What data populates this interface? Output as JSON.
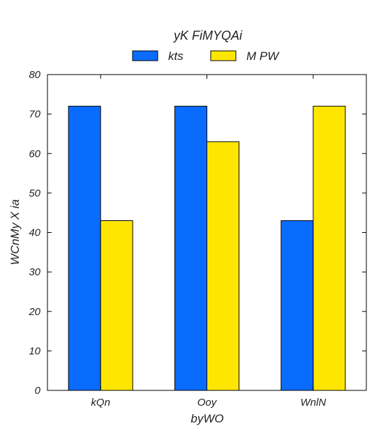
{
  "chart_data": {
    "type": "bar",
    "title": "",
    "legend_title": "yK  FiMYQAi",
    "legend_position": "top-center",
    "xlabel": "byWO",
    "ylabel": "WCnMy X ia",
    "categories": [
      "kQn",
      "Ooy",
      "WnlN"
    ],
    "series": [
      {
        "name": "kts",
        "color": "#0a6cff",
        "values": [
          72,
          72,
          43
        ]
      },
      {
        "name": "M PW",
        "color": "#ffe600",
        "values": [
          43,
          63,
          72
        ]
      }
    ],
    "ylim": [
      0,
      80
    ],
    "yticks": [
      0,
      10,
      20,
      30,
      40,
      50,
      60,
      70,
      80
    ],
    "grid": false
  }
}
